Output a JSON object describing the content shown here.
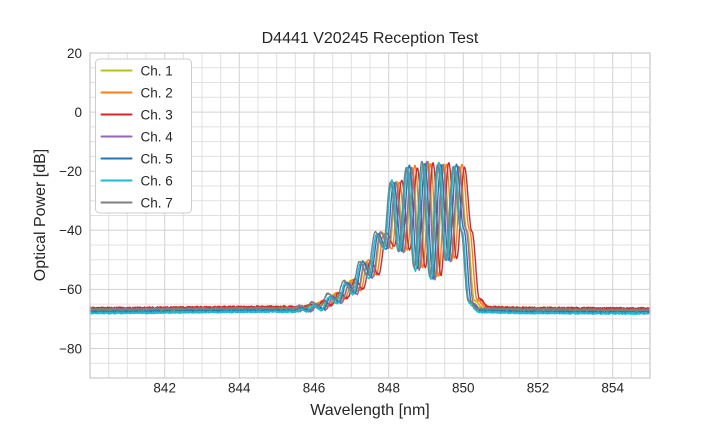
{
  "chart_data": {
    "type": "line",
    "title": "D4441 V20245 Reception Test",
    "xlabel": "Wavelength [nm]",
    "ylabel": "Optical Power [dB]",
    "xlim": [
      840,
      855
    ],
    "ylim": [
      -90,
      20
    ],
    "xticks": [
      842,
      844,
      846,
      848,
      850,
      852,
      854
    ],
    "yticks": [
      20,
      0,
      -20,
      -40,
      -60,
      -80
    ],
    "grid": true,
    "grid_minor_x_step_nm": 0.5,
    "grid_minor_y_step_db": 5,
    "legend_position": "upper left",
    "sample_step_nm": 0.01,
    "floor_noise_db": 0.33,
    "profile_floor_db": -67.0,
    "colors": {
      "background": "#ffffff",
      "text": "#262626",
      "grid_major": "#d2d2d2",
      "grid_minor": "#e0e0e0",
      "spine": "#c8c8c8",
      "legend_border": "#cccccc",
      "legend_fill": "#ffffff"
    },
    "series": [
      {
        "name": "Ch. 1",
        "color": "#bcbd22",
        "offset_nm": 0.0,
        "floor_db": -66.9
      },
      {
        "name": "Ch. 2",
        "color": "#ff7f0e",
        "offset_nm": 0.065,
        "floor_db": -66.5
      },
      {
        "name": "Ch. 3",
        "color": "#d62728",
        "offset_nm": 0.13,
        "floor_db": -66.2
      },
      {
        "name": "Ch. 4",
        "color": "#9467bd",
        "offset_nm": -0.03,
        "floor_db": -67.8
      },
      {
        "name": "Ch. 5",
        "color": "#1f77b4",
        "offset_nm": -0.085,
        "floor_db": -67.4
      },
      {
        "name": "Ch. 6",
        "color": "#17becf",
        "offset_nm": -0.135,
        "floor_db": -67.9
      },
      {
        "name": "Ch. 7",
        "color": "#7f7f7f",
        "offset_nm": -0.17,
        "floor_db": -66.7
      }
    ],
    "profile_anchors": [
      [
        840.0,
        -67.1
      ],
      [
        845.4,
        -66.65
      ],
      [
        845.6,
        -66.7
      ],
      [
        845.78,
        -65.9
      ],
      [
        845.96,
        -66.6
      ],
      [
        846.12,
        -64.6
      ],
      [
        846.33,
        -66.2
      ],
      [
        846.54,
        -61.8
      ],
      [
        846.76,
        -63.8
      ],
      [
        846.97,
        -57.3
      ],
      [
        847.18,
        -60.8
      ],
      [
        847.39,
        -50.5
      ],
      [
        847.6,
        -55.5
      ],
      [
        847.81,
        -41.0
      ],
      [
        848.02,
        -46.0
      ],
      [
        848.22,
        -23.5
      ],
      [
        848.43,
        -47.0
      ],
      [
        848.64,
        -18.5
      ],
      [
        848.85,
        -53.0
      ],
      [
        849.06,
        -17.2
      ],
      [
        849.27,
        -56.0
      ],
      [
        849.48,
        -17.5
      ],
      [
        849.69,
        -50.0
      ],
      [
        849.9,
        -18.2
      ],
      [
        850.1,
        -40.0
      ],
      [
        850.3,
        -64.0
      ],
      [
        850.55,
        -66.8
      ],
      [
        852.0,
        -67.1
      ],
      [
        855.0,
        -67.25
      ],
      [
        855.4,
        -67.25
      ]
    ]
  }
}
